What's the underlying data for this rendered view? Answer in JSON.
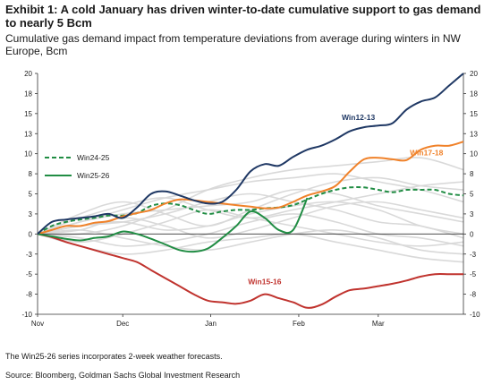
{
  "header": {
    "title": "Exhibit 1:  A cold January has driven winter-to-date cumulative support to gas demand to nearly 5 Bcm",
    "subtitle": "Cumulative gas demand impact from temperature deviations from average during winters in NW Europe, Bcm"
  },
  "footer": {
    "note": "The Win25-26 series incorporates 2-week weather forecasts.",
    "source": "Source: Bloomberg, Goldman Sachs Global Investment Research"
  },
  "chart_data": {
    "type": "line",
    "title": "",
    "xlabel": "",
    "ylabel": "",
    "x_ticks": [
      "Nov",
      "Dec",
      "Jan",
      "Feb",
      "Mar"
    ],
    "x_tick_days": [
      0,
      30,
      61,
      92,
      120
    ],
    "x_range_days": [
      0,
      150
    ],
    "y_ticks": [
      "20",
      "18",
      "15",
      "13",
      "10",
      "8",
      "5",
      "3",
      "0",
      "-3",
      "-5",
      "-8",
      "-10"
    ],
    "y_tick_values": [
      20,
      17.5,
      15,
      12.5,
      10,
      7.5,
      5,
      2.5,
      0,
      -2.5,
      -5,
      -7.5,
      -10
    ],
    "ylim": [
      -10,
      20
    ],
    "grid": false,
    "legend_position": "left",
    "colors": {
      "Win12-13": "#1f3864",
      "Win17-18": "#f0822a",
      "Win15-16": "#c0332e",
      "Win24-25": "#218d44",
      "Win25-26": "#218d44",
      "other_winters": "#d9d9d9"
    },
    "series": [
      {
        "name": "Win12-13",
        "style": "solid",
        "x": [
          0,
          5,
          10,
          15,
          20,
          25,
          30,
          35,
          40,
          45,
          50,
          55,
          60,
          65,
          70,
          75,
          80,
          85,
          90,
          95,
          100,
          105,
          110,
          115,
          120,
          125,
          130,
          135,
          140,
          145,
          150
        ],
        "y": [
          0,
          1.5,
          1.8,
          2,
          2.2,
          2.5,
          2,
          3.3,
          5,
          5.3,
          4.8,
          4.2,
          3.8,
          4,
          5.5,
          7.8,
          8.7,
          8.5,
          9.6,
          10.5,
          11,
          11.8,
          12.8,
          13.3,
          13.5,
          13.8,
          15.5,
          16.5,
          17,
          18.5,
          20
        ]
      },
      {
        "name": "Win17-18",
        "style": "solid",
        "x": [
          0,
          5,
          10,
          15,
          20,
          25,
          30,
          35,
          40,
          45,
          50,
          55,
          60,
          65,
          70,
          75,
          80,
          85,
          90,
          95,
          100,
          105,
          110,
          115,
          120,
          125,
          130,
          135,
          140,
          145,
          150
        ],
        "y": [
          0,
          0.5,
          1,
          1,
          1.4,
          1.6,
          2.2,
          2.6,
          3,
          3.8,
          4.3,
          4.2,
          4,
          3.8,
          3.6,
          3.4,
          3.2,
          3.3,
          4,
          4.8,
          5.3,
          6,
          7.8,
          9.3,
          9.5,
          9.3,
          9.2,
          10.5,
          11,
          11,
          11.5
        ]
      },
      {
        "name": "Win15-16",
        "style": "solid",
        "x": [
          0,
          5,
          10,
          15,
          20,
          25,
          30,
          35,
          40,
          45,
          50,
          55,
          60,
          65,
          70,
          75,
          80,
          85,
          90,
          95,
          100,
          105,
          110,
          115,
          120,
          125,
          130,
          135,
          140,
          145,
          150
        ],
        "y": [
          0,
          -0.4,
          -1,
          -1.5,
          -2,
          -2.5,
          -3,
          -3.5,
          -4.5,
          -5.5,
          -6.5,
          -7.5,
          -8.3,
          -8.5,
          -8.7,
          -8.3,
          -7.5,
          -8,
          -8.5,
          -9.2,
          -8.8,
          -7.8,
          -7,
          -6.8,
          -6.5,
          -6.2,
          -5.8,
          -5.3,
          -5,
          -5,
          -5
        ]
      },
      {
        "name": "Win24-25",
        "style": "dashed",
        "x": [
          0,
          5,
          10,
          15,
          20,
          25,
          30,
          35,
          40,
          45,
          50,
          55,
          60,
          65,
          70,
          75,
          80,
          85,
          90,
          95,
          100,
          105,
          110,
          115,
          120,
          125,
          130,
          135,
          140,
          145,
          150
        ],
        "y": [
          0,
          1,
          1.5,
          1.8,
          2,
          2.3,
          2.3,
          2.6,
          3.5,
          3.8,
          3.6,
          3,
          2.5,
          2.8,
          3,
          3,
          3.2,
          3.3,
          3.6,
          4.3,
          5,
          5.5,
          5.8,
          5.8,
          5.5,
          5.2,
          5.5,
          5.5,
          5.5,
          5,
          4.8
        ]
      },
      {
        "name": "Win25-26",
        "style": "solid",
        "x": [
          0,
          5,
          10,
          15,
          20,
          25,
          30,
          35,
          40,
          45,
          50,
          55,
          60,
          65,
          70,
          75,
          80,
          85,
          90,
          95
        ],
        "y": [
          0,
          -0.3,
          -0.6,
          -0.8,
          -0.5,
          -0.3,
          0.3,
          0,
          -0.6,
          -1.3,
          -2,
          -2.2,
          -1.8,
          -0.5,
          1,
          2.8,
          2,
          0.5,
          0.5,
          4.5
        ]
      }
    ],
    "background_series": [
      {
        "x": [
          0,
          15,
          30,
          45,
          60,
          75,
          90,
          105,
          120,
          135,
          150
        ],
        "y": [
          0,
          2.5,
          4,
          2.5,
          1,
          3,
          5,
          6.5,
          7,
          6,
          5.5
        ]
      },
      {
        "x": [
          0,
          15,
          30,
          45,
          60,
          75,
          90,
          105,
          120,
          135,
          150
        ],
        "y": [
          0,
          1.5,
          3,
          4.5,
          5.5,
          6.5,
          7,
          7.5,
          6.5,
          5.5,
          4
        ]
      },
      {
        "x": [
          0,
          15,
          30,
          45,
          60,
          75,
          90,
          105,
          120,
          135,
          150
        ],
        "y": [
          0,
          -1,
          0,
          1.5,
          3,
          2,
          1,
          0,
          -1,
          -1.5,
          -1
        ]
      },
      {
        "x": [
          0,
          15,
          30,
          45,
          60,
          75,
          90,
          105,
          120,
          135,
          150
        ],
        "y": [
          0,
          0.5,
          2,
          1,
          -0.5,
          0.5,
          2,
          3.5,
          4,
          3,
          2
        ]
      },
      {
        "x": [
          0,
          15,
          30,
          45,
          60,
          75,
          90,
          105,
          120,
          135,
          150
        ],
        "y": [
          0,
          1,
          1.5,
          2.5,
          4,
          5,
          4,
          3,
          1.5,
          1,
          -0.5
        ]
      },
      {
        "x": [
          0,
          15,
          30,
          45,
          60,
          75,
          90,
          105,
          120,
          135,
          150
        ],
        "y": [
          0,
          -0.5,
          -1.5,
          -1,
          0,
          1.5,
          2.5,
          1.5,
          0,
          -0.5,
          -1.5
        ]
      },
      {
        "x": [
          0,
          15,
          30,
          45,
          60,
          75,
          90,
          105,
          120,
          135,
          150
        ],
        "y": [
          0,
          2,
          3.5,
          4.5,
          3,
          2,
          3,
          4,
          5,
          6,
          6.5
        ]
      },
      {
        "x": [
          0,
          15,
          30,
          45,
          60,
          75,
          90,
          105,
          120,
          135,
          150
        ],
        "y": [
          0,
          0,
          1,
          3,
          5.5,
          7,
          8,
          8.5,
          9,
          9.5,
          8
        ]
      },
      {
        "x": [
          0,
          15,
          30,
          45,
          60,
          75,
          90,
          105,
          120,
          135,
          150
        ],
        "y": [
          0,
          -1.5,
          -2.5,
          -2,
          -1,
          -0.5,
          0,
          -1,
          -2,
          -3,
          -3.5
        ]
      },
      {
        "x": [
          0,
          15,
          30,
          45,
          60,
          75,
          90,
          105,
          120,
          135,
          150
        ],
        "y": [
          0,
          1,
          1.5,
          0.5,
          1,
          2.5,
          3.5,
          4,
          3,
          1,
          0
        ]
      },
      {
        "x": [
          0,
          15,
          30,
          45,
          60,
          75,
          90,
          105,
          120,
          135,
          150
        ],
        "y": [
          0,
          0.5,
          -0.5,
          -1.5,
          -2,
          -1,
          0,
          0.5,
          -0.5,
          -2,
          -2.5
        ]
      },
      {
        "x": [
          0,
          15,
          30,
          45,
          60,
          75,
          90,
          105,
          120,
          135,
          150
        ],
        "y": [
          0,
          1.5,
          2.5,
          3,
          3.5,
          4,
          5.5,
          5,
          3.5,
          2.5,
          1.5
        ]
      }
    ],
    "annotations": [
      "Win12-13",
      "Win17-18",
      "Win15-16"
    ],
    "legend": [
      {
        "name": "Win24-25",
        "style": "dashed"
      },
      {
        "name": "Win25-26",
        "style": "solid"
      }
    ]
  }
}
